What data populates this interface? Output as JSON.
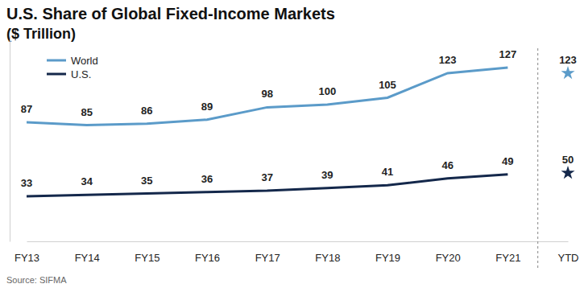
{
  "chart_data": {
    "type": "line",
    "title": "U.S. Share of Global Fixed-Income Markets",
    "subtitle": "($ Trillion)",
    "source": "Source: SIFMA",
    "categories": [
      "FY13",
      "FY14",
      "FY15",
      "FY16",
      "FY17",
      "FY18",
      "FY19",
      "FY20",
      "FY21",
      "YTD"
    ],
    "series": [
      {
        "name": "World",
        "color": "#5b9bc9",
        "type": "line",
        "values": [
          87,
          85,
          86,
          89,
          98,
          100,
          105,
          123,
          127,
          null
        ]
      },
      {
        "name": "U.S.",
        "color": "#14284b",
        "type": "line",
        "values": [
          33,
          34,
          35,
          36,
          37,
          39,
          41,
          46,
          49,
          null
        ]
      },
      {
        "name": "World",
        "color": "#5b9bc9",
        "type": "scatter",
        "marker": "star",
        "values": [
          null,
          null,
          null,
          null,
          null,
          null,
          null,
          null,
          null,
          123
        ]
      },
      {
        "name": "U.S.",
        "color": "#14284b",
        "type": "scatter",
        "marker": "star",
        "values": [
          null,
          null,
          null,
          null,
          null,
          null,
          null,
          null,
          null,
          50
        ]
      }
    ],
    "ylim": [
      0,
      150
    ],
    "grid": false,
    "legend": "upper left",
    "data_labels": true,
    "tick_labels": "x"
  }
}
